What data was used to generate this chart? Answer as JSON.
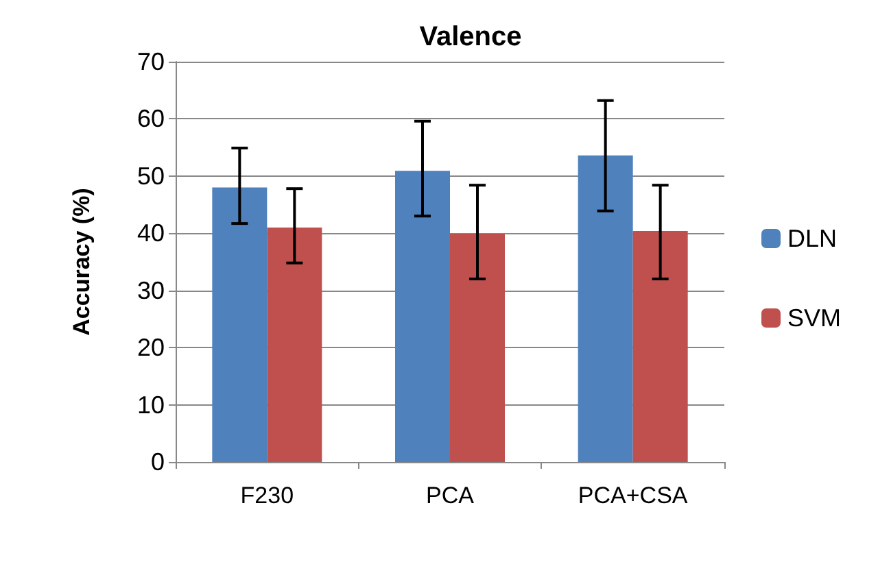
{
  "chart_data": {
    "type": "bar",
    "title": "Valence",
    "ylabel": "Accuracy (%)",
    "categories": [
      "F230",
      "PCA",
      "PCA+CSA"
    ],
    "series": [
      {
        "name": "DLN",
        "color": "#4f81bd",
        "values": [
          48,
          50.9,
          53.6
        ],
        "errors": [
          [
            41.7,
            54.9
          ],
          [
            43,
            59.6
          ],
          [
            43.9,
            63.2
          ]
        ]
      },
      {
        "name": "SVM",
        "color": "#c0504d",
        "values": [
          41,
          39.9,
          40.4
        ],
        "errors": [
          [
            34.8,
            47.8
          ],
          [
            32,
            48.4
          ],
          [
            32,
            48.4
          ]
        ]
      }
    ],
    "ylim": [
      0,
      70
    ],
    "yticks": [
      0,
      10,
      20,
      30,
      40,
      50,
      60,
      70
    ],
    "grid": "y",
    "legend": "right"
  }
}
